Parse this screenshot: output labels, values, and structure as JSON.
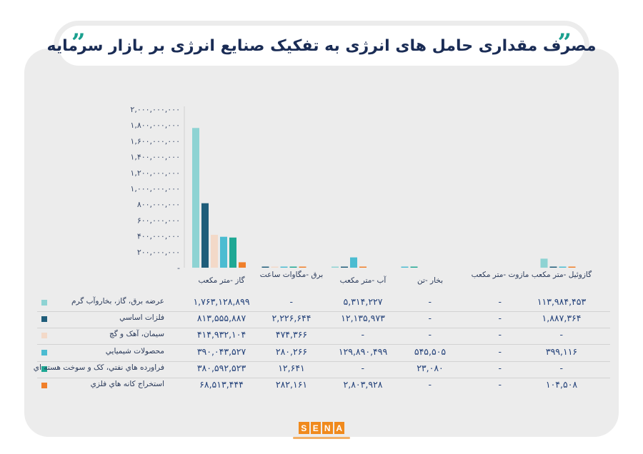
{
  "title": "مصرف مقداری حامل های انرژی به تفکیک صنایع انرژی بر بازار سرمایه",
  "logo": "SENA",
  "colors": {
    "background": "#ececec",
    "title_text": "#1a2c55",
    "accent": "#1aa08f",
    "value_text": "#24427a"
  },
  "chart_data": {
    "type": "bar",
    "title": "",
    "xlabel": "",
    "ylabel": "",
    "ylim": [
      0,
      2000000000
    ],
    "y_ticks": [
      "۲,۰۰۰,۰۰۰,۰۰۰",
      "۱,۸۰۰,۰۰۰,۰۰۰",
      "۱,۶۰۰,۰۰۰,۰۰۰",
      "۱,۴۰۰,۰۰۰,۰۰۰",
      "۱,۲۰۰,۰۰۰,۰۰۰",
      "۱,۰۰۰,۰۰۰,۰۰۰",
      "۸۰۰,۰۰۰,۰۰۰",
      "۶۰۰,۰۰۰,۰۰۰",
      "۴۰۰,۰۰۰,۰۰۰",
      "۲۰۰,۰۰۰,۰۰۰",
      "-"
    ],
    "y_tick_values": [
      2000000000,
      1800000000,
      1600000000,
      1400000000,
      1200000000,
      1000000000,
      800000000,
      600000000,
      400000000,
      200000000,
      0
    ],
    "grid": false,
    "legend": "table rows at bottom-left",
    "categories": [
      "گاز -متر مکعب",
      "برق -مگاوات ساعت",
      "آب -متر مکعب",
      "بخار -تن",
      "مازوت -متر مکعب",
      "گازوئیل -متر مکعب"
    ],
    "series": [
      {
        "name": "عرضه برق، گاز، بخاروآب گرم",
        "color": "#8ed3d3",
        "values": [
          1763128899,
          null,
          5314227,
          null,
          null,
          113984453
        ],
        "labels": [
          "۱,۷۶۳,۱۲۸,۸۹۹",
          "-",
          "۵,۳۱۴,۲۲۷",
          "-",
          "-",
          "۱۱۳,۹۸۴,۴۵۳"
        ]
      },
      {
        "name": "فلزات اساسي",
        "color": "#1f5d7a",
        "values": [
          813555887,
          2226644,
          12135973,
          null,
          null,
          1887364
        ],
        "labels": [
          "۸۱۳,۵۵۵,۸۸۷",
          "۲,۲۲۶,۶۴۴",
          "۱۲,۱۳۵,۹۷۳",
          "-",
          "-",
          "۱,۸۸۷,۳۶۴"
        ]
      },
      {
        "name": "سيمان، آهک و گچ",
        "color": "#f3d9c8",
        "values": [
          414932104,
          474366,
          null,
          null,
          null,
          null
        ],
        "labels": [
          "۴۱۴,۹۳۲,۱۰۴",
          "۴۷۴,۳۶۶",
          "-",
          "-",
          "-",
          "-"
        ]
      },
      {
        "name": "محصولات شيميايي",
        "color": "#4cbcd1",
        "values": [
          390043527,
          280266,
          129890499,
          545505,
          null,
          399116
        ],
        "labels": [
          "۳۹۰,۰۴۳,۵۲۷",
          "۲۸۰,۲۶۶",
          "۱۲۹,۸۹۰,۴۹۹",
          "۵۴۵,۵۰۵",
          "-",
          "۳۹۹,۱۱۶"
        ]
      },
      {
        "name": "فراورده هاي نفتي، کک و سوخت هسته اي",
        "color": "#1fa894",
        "values": [
          380592523,
          12641,
          null,
          23080,
          null,
          null
        ],
        "labels": [
          "۳۸۰,۵۹۲,۵۲۳",
          "۱۲,۶۴۱",
          "-",
          "۲۳,۰۸۰",
          "-",
          "-"
        ]
      },
      {
        "name": "استخراج کانه هاي فلزي",
        "color": "#f07f2a",
        "values": [
          68513444,
          282161,
          2803928,
          null,
          null,
          104508
        ],
        "labels": [
          "۶۸,۵۱۳,۴۴۴",
          "۲۸۲,۱۶۱",
          "۲,۸۰۳,۹۲۸",
          "-",
          "-",
          "۱۰۴,۵۰۸"
        ]
      }
    ]
  }
}
